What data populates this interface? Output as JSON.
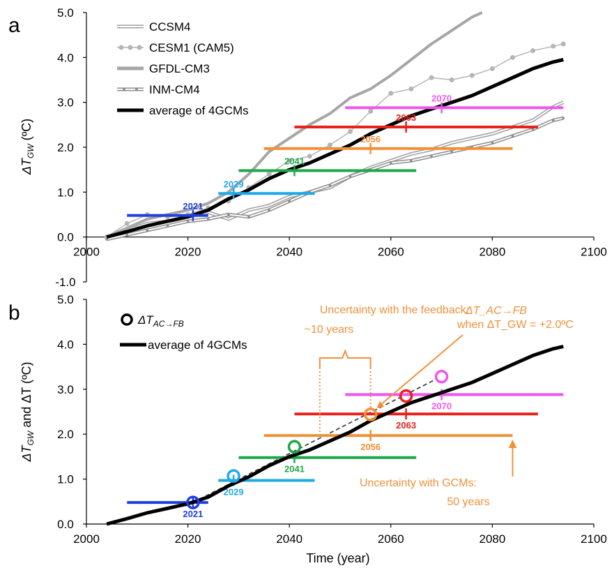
{
  "chart_data": [
    {
      "panel": "a",
      "type": "line",
      "ylabel": "ΔT_GW (ºC)",
      "xlim": [
        2000,
        2100
      ],
      "ylim": [
        -1.0,
        5.0
      ],
      "xticks": [
        "2000",
        "2020",
        "2040",
        "2060",
        "2080",
        "2100"
      ],
      "yticks": [
        "-1.0",
        "0.0",
        "1.0",
        "2.0",
        "3.0",
        "4.0",
        "5.0"
      ],
      "legend_position": "top-left",
      "series": [
        {
          "name": "CCSM4",
          "style": "double-line",
          "color": "#9e9e9e",
          "x": [
            2004,
            2008,
            2012,
            2016,
            2020,
            2024,
            2028,
            2032,
            2036,
            2040,
            2044,
            2048,
            2052,
            2056,
            2060,
            2064,
            2068,
            2072,
            2076,
            2080,
            2084,
            2088,
            2092,
            2094
          ],
          "y": [
            0.0,
            0.15,
            0.3,
            0.35,
            0.45,
            0.55,
            0.4,
            0.6,
            0.7,
            0.9,
            1.0,
            1.1,
            1.35,
            1.55,
            1.7,
            1.85,
            1.95,
            2.1,
            2.2,
            2.3,
            2.45,
            2.6,
            2.9,
            3.0
          ]
        },
        {
          "name": "CESM1 (CAM5)",
          "style": "dotted-markers",
          "color": "#b5b5b5",
          "x": [
            2004,
            2008,
            2012,
            2016,
            2020,
            2024,
            2028,
            2032,
            2036,
            2040,
            2044,
            2048,
            2052,
            2056,
            2060,
            2064,
            2068,
            2072,
            2076,
            2080,
            2084,
            2088,
            2092,
            2094
          ],
          "y": [
            0.0,
            0.3,
            0.5,
            0.45,
            0.5,
            0.65,
            0.8,
            1.1,
            1.4,
            1.7,
            1.8,
            2.05,
            2.35,
            2.8,
            3.2,
            3.3,
            3.55,
            3.5,
            3.6,
            3.75,
            4.0,
            4.15,
            4.25,
            4.3
          ]
        },
        {
          "name": "GFDL-CM3",
          "style": "thick",
          "color": "#a6a6a6",
          "x": [
            2004,
            2008,
            2012,
            2016,
            2020,
            2024,
            2028,
            2032,
            2036,
            2040,
            2044,
            2048,
            2052,
            2056,
            2060,
            2064,
            2068,
            2072,
            2076,
            2078
          ],
          "y": [
            0.0,
            0.2,
            0.4,
            0.5,
            0.6,
            0.75,
            1.0,
            1.4,
            1.9,
            2.2,
            2.5,
            2.75,
            3.1,
            3.3,
            3.6,
            3.95,
            4.3,
            4.6,
            4.9,
            5.0
          ]
        },
        {
          "name": "INM-CM4",
          "style": "double-line-markers",
          "color": "#8c8c8c",
          "x": [
            2004,
            2008,
            2012,
            2016,
            2020,
            2024,
            2028,
            2032,
            2036,
            2040,
            2044,
            2048,
            2052,
            2056,
            2060,
            2064,
            2068,
            2072,
            2076,
            2080,
            2084,
            2088,
            2092,
            2094
          ],
          "y": [
            -0.05,
            0.05,
            0.15,
            0.25,
            0.35,
            0.4,
            0.5,
            0.45,
            0.6,
            0.8,
            1.0,
            1.15,
            1.35,
            1.5,
            1.65,
            1.7,
            1.8,
            1.9,
            2.0,
            2.1,
            2.25,
            2.4,
            2.6,
            2.65
          ]
        },
        {
          "name": "average of 4GCMs",
          "style": "thick",
          "color": "#000000",
          "x": [
            2004,
            2008,
            2012,
            2016,
            2020,
            2024,
            2028,
            2032,
            2036,
            2040,
            2044,
            2048,
            2052,
            2056,
            2060,
            2064,
            2068,
            2072,
            2076,
            2080,
            2084,
            2088,
            2092,
            2094
          ],
          "y": [
            0.0,
            0.12,
            0.25,
            0.35,
            0.45,
            0.6,
            0.85,
            1.05,
            1.3,
            1.5,
            1.65,
            1.85,
            2.05,
            2.3,
            2.5,
            2.7,
            2.85,
            3.0,
            3.15,
            3.35,
            3.55,
            3.75,
            3.9,
            3.95
          ]
        }
      ],
      "uncertainty_bars": [
        {
          "label": "2021",
          "y": 0.48,
          "x_start": 2008,
          "x_end": 2024,
          "center": 2021,
          "color": "#1f3fe0"
        },
        {
          "label": "2029",
          "y": 0.97,
          "x_start": 2026,
          "x_end": 2045,
          "center": 2029,
          "color": "#1eaae6"
        },
        {
          "label": "2041",
          "y": 1.48,
          "x_start": 2030,
          "x_end": 2065,
          "center": 2041,
          "color": "#1fa84a"
        },
        {
          "label": "2056",
          "y": 1.97,
          "x_start": 2035,
          "x_end": 2084,
          "center": 2056,
          "color": "#f0913a"
        },
        {
          "label": "2063",
          "y": 2.45,
          "x_start": 2041,
          "x_end": 2089,
          "center": 2063,
          "color": "#e8211a"
        },
        {
          "label": "2070",
          "y": 2.88,
          "x_start": 2051,
          "x_end": 2094,
          "center": 2070,
          "color": "#ee55ee"
        }
      ]
    },
    {
      "panel": "b",
      "type": "line",
      "ylabel": "ΔT_GW and ΔT (ºC)",
      "xlabel": "Time (year)",
      "xlim": [
        2000,
        2100
      ],
      "ylim": [
        0.0,
        5.0
      ],
      "xticks": [
        "2000",
        "2020",
        "2040",
        "2060",
        "2080",
        "2100"
      ],
      "yticks": [
        "0.0",
        "1.0",
        "2.0",
        "3.0",
        "4.0",
        "5.0"
      ],
      "legend_position": "top-left",
      "series": [
        {
          "name": "ΔT_AC→FB",
          "style": "open-circles",
          "x": [
            2021,
            2029,
            2041,
            2056,
            2063,
            2070
          ],
          "y": [
            0.48,
            1.07,
            1.72,
            2.44,
            2.85,
            3.28
          ]
        },
        {
          "name": "average of 4GCMs",
          "style": "thick",
          "color": "#000000",
          "x": [
            2004,
            2008,
            2012,
            2016,
            2020,
            2024,
            2028,
            2032,
            2036,
            2040,
            2044,
            2048,
            2052,
            2056,
            2060,
            2064,
            2068,
            2072,
            2076,
            2080,
            2084,
            2088,
            2092,
            2094
          ],
          "y": [
            0.0,
            0.12,
            0.25,
            0.35,
            0.45,
            0.6,
            0.85,
            1.05,
            1.3,
            1.5,
            1.65,
            1.85,
            2.05,
            2.3,
            2.5,
            2.7,
            2.85,
            3.0,
            3.15,
            3.35,
            3.55,
            3.75,
            3.9,
            3.95
          ]
        }
      ],
      "uncertainty_bars": [
        {
          "label": "2021",
          "y": 0.48,
          "x_start": 2008,
          "x_end": 2024,
          "center": 2021,
          "color": "#1f3fe0"
        },
        {
          "label": "2029",
          "y": 0.97,
          "x_start": 2026,
          "x_end": 2045,
          "center": 2029,
          "color": "#1eaae6"
        },
        {
          "label": "2041",
          "y": 1.48,
          "x_start": 2030,
          "x_end": 2065,
          "center": 2041,
          "color": "#1fa84a"
        },
        {
          "label": "2056",
          "y": 1.97,
          "x_start": 2035,
          "x_end": 2084,
          "center": 2056,
          "color": "#f0913a"
        },
        {
          "label": "2063",
          "y": 2.45,
          "x_start": 2041,
          "x_end": 2089,
          "center": 2063,
          "color": "#e8211a"
        },
        {
          "label": "2070",
          "y": 2.88,
          "x_start": 2051,
          "x_end": 2094,
          "center": 2070,
          "color": "#ee55ee"
        }
      ],
      "annotations": {
        "feedback": "Uncertainty with the feedback:",
        "feedback_years": "~10 years",
        "dt_ac": "ΔT_AC→FB",
        "when": "when ΔT_GW = +2.0ºC",
        "gcms": "Uncertainty with GCMs:",
        "gcms_years": "50 years"
      }
    }
  ],
  "labels": {
    "panel_a": "a",
    "panel_b": "b",
    "ylabel_a": "ΔT",
    "ylabel_a_sub": "GW",
    "ylabel_a_rest": " (ºC)",
    "ylabel_b_1": "ΔT",
    "ylabel_b_sub1": "GW",
    "ylabel_b_2": " and ΔT (ºC)",
    "xlabel": "Time (year)",
    "legend_b_marker": "ΔT",
    "legend_b_sub": "AC→FB"
  }
}
